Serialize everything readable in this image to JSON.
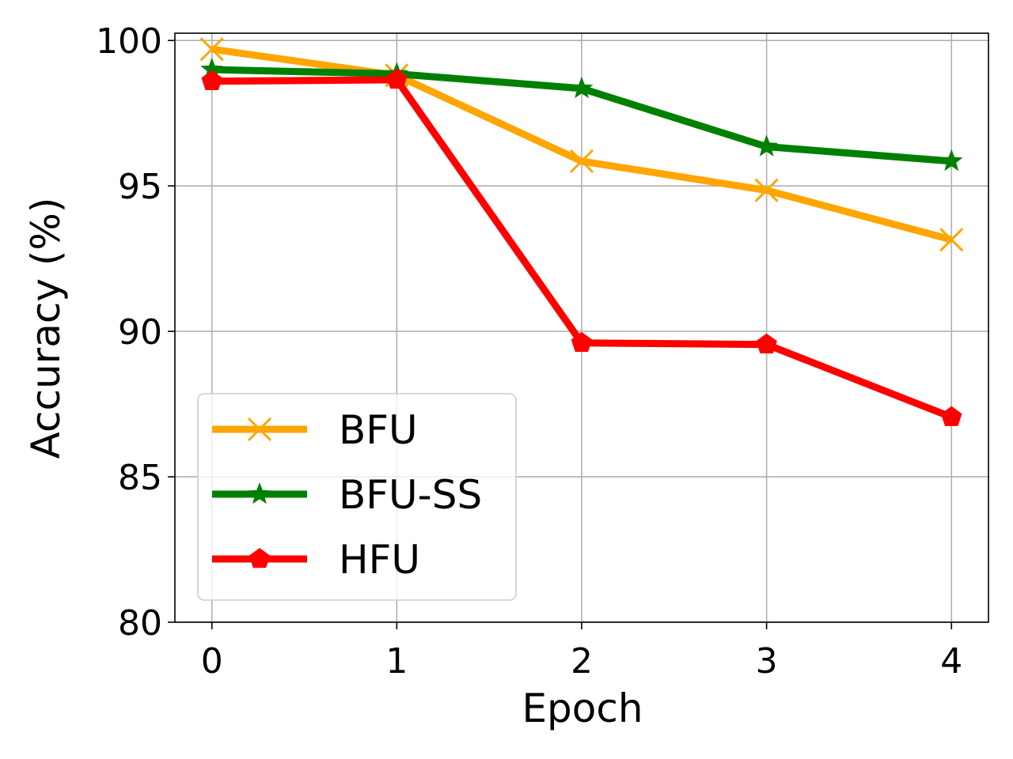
{
  "chart_data": {
    "type": "line",
    "title": "",
    "xlabel": "Epoch",
    "ylabel": "Accuracy (%)",
    "x": [
      0,
      1,
      2,
      3,
      4
    ],
    "xticks": [
      "0",
      "1",
      "2",
      "3",
      "4"
    ],
    "yticks": [
      "80",
      "85",
      "90",
      "95",
      "100"
    ],
    "xlim": [
      -0.2,
      4.2
    ],
    "ylim": [
      80,
      100.25
    ],
    "grid": true,
    "legend_position": "lower-left",
    "series": [
      {
        "name": "BFU",
        "color": "#FFA500",
        "marker": "x-icon",
        "values": [
          99.7,
          98.8,
          95.85,
          94.85,
          93.15
        ]
      },
      {
        "name": "BFU-SS",
        "color": "#008000",
        "marker": "star-icon",
        "values": [
          99.0,
          98.85,
          98.35,
          96.35,
          95.85
        ]
      },
      {
        "name": "HFU",
        "color": "#FF0000",
        "marker": "pentagon-icon",
        "values": [
          98.6,
          98.65,
          89.6,
          89.55,
          87.05
        ]
      }
    ]
  }
}
